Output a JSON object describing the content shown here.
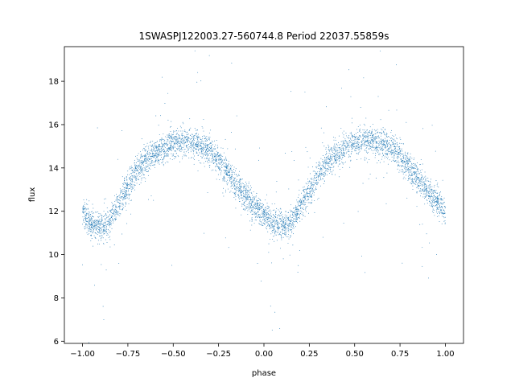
{
  "chart_data": {
    "type": "scatter",
    "title": "1SWASPJ122003.27-560744.8 Period 22037.55859s",
    "xlabel": "phase",
    "ylabel": "flux",
    "xlim": [
      -1.1,
      1.1
    ],
    "ylim": [
      5.9,
      19.6
    ],
    "x_ticks": [
      -1.0,
      -0.75,
      -0.5,
      -0.25,
      0.0,
      0.25,
      0.5,
      0.75,
      1.0
    ],
    "x_tick_labels": [
      "−1.00",
      "−0.75",
      "−0.50",
      "−0.25",
      "0.00",
      "0.25",
      "0.50",
      "0.75",
      "1.00"
    ],
    "y_ticks": [
      6,
      8,
      10,
      12,
      14,
      16,
      18
    ],
    "y_tick_labels": [
      "6",
      "8",
      "10",
      "12",
      "14",
      "16",
      "18"
    ],
    "grid": false,
    "marker_color": "#1f77b4",
    "series": [
      {
        "x": [
          -1.0,
          -0.95,
          -0.9,
          -0.85,
          -0.8,
          -0.75,
          -0.7,
          -0.65,
          -0.6,
          -0.55,
          -0.5,
          -0.45,
          -0.4,
          -0.35,
          -0.3,
          -0.25,
          -0.2,
          -0.15,
          -0.1,
          -0.05,
          0.0,
          0.05,
          0.1,
          0.15,
          0.2,
          0.25,
          0.3,
          0.35,
          0.4,
          0.45,
          0.5,
          0.55,
          0.6,
          0.65,
          0.7,
          0.75,
          0.8,
          0.85,
          0.9,
          0.95,
          1.0
        ],
        "y": [
          11.9,
          11.4,
          11.3,
          11.5,
          12.3,
          13.2,
          13.9,
          14.4,
          14.7,
          14.9,
          15.1,
          15.2,
          15.2,
          15.1,
          14.8,
          14.3,
          13.8,
          13.2,
          12.7,
          12.2,
          11.8,
          11.4,
          11.3,
          11.4,
          12.2,
          13.0,
          13.7,
          14.3,
          14.6,
          14.9,
          15.1,
          15.2,
          15.2,
          15.1,
          14.9,
          14.5,
          14.0,
          13.5,
          13.0,
          12.5,
          12.0
        ]
      }
    ]
  }
}
